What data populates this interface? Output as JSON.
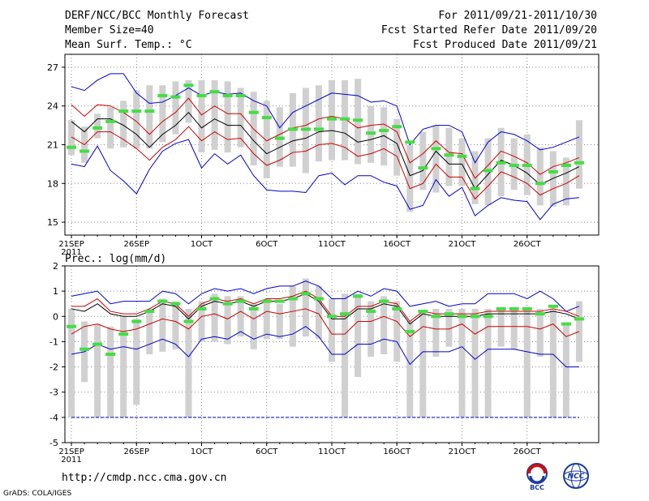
{
  "header": {
    "title": "DERF/NCC/BCC Monthly Forecast",
    "member_size": "Member Size=40",
    "variable": "Mean Surf. Temp.: °C",
    "period": "For 2011/09/21-2011/10/30",
    "refer_date": "Fcst Started Refer Date 2011/09/20",
    "produced_date": "Fcst Produced Date 2011/09/21"
  },
  "footer": {
    "url": "http://cmdp.ncc.cma.gov.cn",
    "credit": "GrADS: COLA/IGES",
    "logo_left_text": "BCC",
    "logo_right_text": "NCC"
  },
  "colors": {
    "ensemble_mean": "#000000",
    "inner_range": "#cc0000",
    "outer_range": "#0000cc",
    "observed_marker": "#44dd44",
    "spread_box": "#d0d0d0",
    "grid": "#888888"
  },
  "chart_data": [
    {
      "type": "line",
      "title": "Mean Surf. Temp.: °C",
      "ylabel": "°C",
      "ylim": [
        14,
        28
      ],
      "yticks": [
        15,
        18,
        21,
        24,
        27
      ],
      "xlim": [
        -0.5,
        40.5
      ],
      "x_day_index": [
        0,
        1,
        2,
        3,
        4,
        5,
        6,
        7,
        8,
        9,
        10,
        11,
        12,
        13,
        14,
        15,
        16,
        17,
        18,
        19,
        20,
        21,
        22,
        23,
        24,
        25,
        26,
        27,
        28,
        29,
        30,
        31,
        32,
        33,
        34,
        35,
        36,
        37,
        38,
        39
      ],
      "xtick_index": [
        0,
        5,
        10,
        15,
        20,
        25,
        30,
        35
      ],
      "xtick_labels": [
        "21SEP",
        "26SEP",
        "1OCT",
        "6OCT",
        "11OCT",
        "16OCT",
        "21OCT",
        "26OCT"
      ],
      "xtick_sublabel": "2011",
      "series": [
        {
          "name": "ensemble_mean",
          "values": [
            22.8,
            22.0,
            23.0,
            23.0,
            22.5,
            21.8,
            20.8,
            21.8,
            22.5,
            23.5,
            22.3,
            23.0,
            22.5,
            22.5,
            21.3,
            20.3,
            20.8,
            21.3,
            21.5,
            22.0,
            22.1,
            21.9,
            21.2,
            21.4,
            21.7,
            21.1,
            18.6,
            19.0,
            20.5,
            19.5,
            19.5,
            17.6,
            18.7,
            19.8,
            19.4,
            18.8,
            17.9,
            18.4,
            18.8,
            19.3
          ]
        },
        {
          "name": "inner_upper",
          "values": [
            24.1,
            23.2,
            24.1,
            24.0,
            23.5,
            22.8,
            21.8,
            22.8,
            23.5,
            24.6,
            23.3,
            24.0,
            23.4,
            23.4,
            22.2,
            21.3,
            21.8,
            22.3,
            22.5,
            23.0,
            23.2,
            23.0,
            22.3,
            22.5,
            22.6,
            22.0,
            19.6,
            20.3,
            21.3,
            20.4,
            20.3,
            18.4,
            19.4,
            20.5,
            20.1,
            19.6,
            18.7,
            19.3,
            19.6,
            20.0
          ]
        },
        {
          "name": "inner_lower",
          "values": [
            21.6,
            21.0,
            22.0,
            22.0,
            21.4,
            20.7,
            19.8,
            20.8,
            21.4,
            22.4,
            21.3,
            22.0,
            21.4,
            21.5,
            20.3,
            19.4,
            19.8,
            20.4,
            20.5,
            21.0,
            21.1,
            20.8,
            20.1,
            20.3,
            20.7,
            20.1,
            17.6,
            18.0,
            19.5,
            18.5,
            18.5,
            16.8,
            17.8,
            18.9,
            18.5,
            18.0,
            17.1,
            17.6,
            18.0,
            18.6
          ]
        },
        {
          "name": "outer_upper",
          "values": [
            25.5,
            25.2,
            26.0,
            26.5,
            26.5,
            25.0,
            24.2,
            24.3,
            24.8,
            25.4,
            24.8,
            25.1,
            24.9,
            25.0,
            24.4,
            24.0,
            22.3,
            23.5,
            24.0,
            24.5,
            25.0,
            24.9,
            24.8,
            24.3,
            24.4,
            24.0,
            21.0,
            22.2,
            22.5,
            22.5,
            22.0,
            19.6,
            21.2,
            22.0,
            21.8,
            21.3,
            20.6,
            20.8,
            21.2,
            21.6
          ]
        },
        {
          "name": "outer_lower",
          "values": [
            19.5,
            19.3,
            20.9,
            19.0,
            18.2,
            17.2,
            19.1,
            20.5,
            21.1,
            21.4,
            19.2,
            20.3,
            19.5,
            20.2,
            18.6,
            17.5,
            17.4,
            17.4,
            17.3,
            18.6,
            18.8,
            17.9,
            18.6,
            18.6,
            18.1,
            17.8,
            16.0,
            16.3,
            18.3,
            17.0,
            17.7,
            15.5,
            16.3,
            16.9,
            16.7,
            16.6,
            15.2,
            16.4,
            16.8,
            16.9
          ]
        },
        {
          "name": "spread_max",
          "values": [
            22.9,
            22.4,
            23.4,
            23.9,
            24.4,
            25.2,
            25.6,
            25.6,
            25.9,
            26.0,
            26.0,
            26.0,
            25.9,
            25.4,
            25.1,
            24.4,
            23.9,
            25.0,
            25.4,
            25.6,
            26.0,
            26.0,
            26.1,
            24.0,
            23.9,
            23.0,
            21.0,
            22.0,
            22.5,
            22.3,
            21.5,
            20.5,
            21.5,
            22.3,
            21.5,
            21.8,
            20.8,
            20.5,
            20.0,
            22.9
          ]
        },
        {
          "name": "spread_min",
          "values": [
            20.2,
            19.6,
            21.5,
            20.7,
            20.8,
            20.7,
            20.7,
            21.2,
            21.8,
            22.7,
            20.4,
            20.6,
            20.4,
            20.8,
            19.4,
            18.4,
            19.3,
            19.3,
            18.8,
            19.7,
            19.8,
            19.8,
            19.5,
            19.6,
            19.4,
            18.6,
            15.8,
            17.5,
            17.3,
            17.8,
            17.8,
            16.4,
            16.3,
            17.0,
            17.5,
            17.1,
            16.3,
            16.2,
            16.3,
            17.6
          ]
        },
        {
          "name": "observed",
          "values": [
            20.8,
            20.5,
            22.3,
            22.8,
            23.6,
            23.6,
            23.6,
            24.8,
            24.7,
            25.6,
            24.8,
            25.1,
            24.8,
            24.8,
            23.5,
            23.1,
            21.5,
            22.2,
            22.2,
            22.2,
            23.0,
            23.0,
            22.9,
            21.9,
            22.1,
            22.4,
            21.2,
            19.2,
            20.7,
            20.2,
            20.1,
            17.6,
            19.0,
            19.6,
            19.4,
            19.4,
            18.0,
            18.9,
            19.4,
            19.6
          ]
        }
      ]
    },
    {
      "type": "line",
      "title": "Prec.: log(mm/d)",
      "ylabel": "log(mm/d)",
      "ylim": [
        -5,
        2
      ],
      "yticks": [
        -5,
        -4,
        -3,
        -2,
        -1,
        0,
        1,
        2
      ],
      "xlim": [
        -0.5,
        40.5
      ],
      "x_day_index": [
        0,
        1,
        2,
        3,
        4,
        5,
        6,
        7,
        8,
        9,
        10,
        11,
        12,
        13,
        14,
        15,
        16,
        17,
        18,
        19,
        20,
        21,
        22,
        23,
        24,
        25,
        26,
        27,
        28,
        29,
        30,
        31,
        32,
        33,
        34,
        35,
        36,
        37,
        38,
        39
      ],
      "xtick_index": [
        0,
        5,
        10,
        15,
        20,
        25,
        30,
        35
      ],
      "xtick_labels": [
        "21SEP",
        "26SEP",
        "1OCT",
        "6OCT",
        "11OCT",
        "16OCT",
        "21OCT",
        "26OCT"
      ],
      "xtick_sublabel": "2011",
      "reference_line": -4,
      "series": [
        {
          "name": "ensemble_mean",
          "values": [
            0.3,
            0.2,
            0.5,
            0.1,
            0.0,
            0.0,
            0.2,
            0.5,
            0.4,
            -0.1,
            0.4,
            0.6,
            0.5,
            0.6,
            0.4,
            0.6,
            0.6,
            0.7,
            0.9,
            0.6,
            -0.1,
            -0.1,
            0.3,
            0.3,
            0.5,
            0.4,
            -0.3,
            0.1,
            0.0,
            0.0,
            0.0,
            0.0,
            0.1,
            0.1,
            0.1,
            0.1,
            0.1,
            0.2,
            0.1,
            -0.1
          ]
        },
        {
          "name": "inner_upper",
          "values": [
            0.4,
            0.4,
            0.7,
            0.2,
            0.1,
            0.1,
            0.3,
            0.6,
            0.5,
            0.0,
            0.5,
            0.7,
            0.6,
            0.7,
            0.5,
            0.7,
            0.7,
            0.8,
            1.0,
            0.7,
            0.0,
            0.0,
            0.4,
            0.4,
            0.6,
            0.5,
            -0.2,
            0.2,
            0.1,
            0.1,
            0.1,
            0.1,
            0.2,
            0.2,
            0.2,
            0.2,
            0.2,
            0.3,
            0.2,
            0.0
          ]
        },
        {
          "name": "inner_lower",
          "values": [
            -0.7,
            -0.4,
            -0.3,
            -0.5,
            -0.6,
            -0.5,
            -0.3,
            -0.1,
            -0.2,
            -0.5,
            0.0,
            0.1,
            -0.1,
            0.2,
            -0.1,
            0.2,
            0.1,
            0.2,
            0.3,
            0.1,
            -0.7,
            -0.7,
            -0.2,
            -0.2,
            0.0,
            -0.2,
            -0.8,
            -0.4,
            -0.5,
            -0.5,
            -0.3,
            -0.7,
            -0.4,
            -0.4,
            -0.4,
            -0.4,
            -0.5,
            -0.3,
            -0.8,
            -0.6
          ]
        },
        {
          "name": "outer_upper",
          "values": [
            0.8,
            0.9,
            1.0,
            0.5,
            0.6,
            0.6,
            0.6,
            1.0,
            0.9,
            0.5,
            0.9,
            1.1,
            1.0,
            1.1,
            0.9,
            1.1,
            1.2,
            1.2,
            1.4,
            1.2,
            0.7,
            0.7,
            1.0,
            0.8,
            1.1,
            1.0,
            0.4,
            0.5,
            0.6,
            0.4,
            0.5,
            0.5,
            0.9,
            0.9,
            0.9,
            0.7,
            1.0,
            0.7,
            0.2,
            0.4
          ]
        },
        {
          "name": "outer_lower",
          "values": [
            -1.5,
            -1.4,
            -1.1,
            -1.3,
            -1.2,
            -1.3,
            -1.1,
            -0.9,
            -1.1,
            -1.6,
            -0.9,
            -0.8,
            -0.9,
            -0.6,
            -0.9,
            -0.7,
            -0.8,
            -0.7,
            -0.4,
            -0.8,
            -1.5,
            -1.5,
            -1.1,
            -1.1,
            -0.9,
            -1.0,
            -1.9,
            -1.4,
            -1.4,
            -1.4,
            -1.2,
            -1.7,
            -1.3,
            -1.3,
            -1.3,
            -1.4,
            -1.5,
            -1.5,
            -2.0,
            -2.0
          ]
        },
        {
          "name": "spread_max",
          "values": [
            0.3,
            -0.2,
            -0.3,
            -0.4,
            0.0,
            -0.1,
            0.3,
            0.7,
            0.6,
            0.3,
            0.6,
            0.9,
            0.8,
            0.8,
            0.5,
            0.7,
            0.5,
            1.2,
            1.5,
            1.2,
            0.7,
            0.9,
            0.9,
            0.6,
            0.8,
            0.6,
            -0.2,
            0.2,
            0.3,
            0.3,
            0.3,
            0.3,
            0.3,
            0.3,
            0.3,
            0.3,
            0.3,
            0.3,
            -0.3,
            0.6
          ]
        },
        {
          "name": "spread_min",
          "values": [
            -4.0,
            -2.6,
            -4.0,
            -4.0,
            -4.0,
            -3.5,
            -1.5,
            -1.4,
            -1.3,
            -4.0,
            -1.0,
            -1.0,
            -1.1,
            -0.8,
            -1.3,
            -0.9,
            -0.9,
            -1.2,
            -0.8,
            -0.9,
            -1.8,
            -4.0,
            -2.4,
            -1.6,
            -1.5,
            -1.8,
            -4.0,
            -4.0,
            -1.6,
            -1.2,
            -4.0,
            -4.0,
            -4.0,
            -1.2,
            -1.3,
            -4.0,
            -1.6,
            -4.0,
            -4.0,
            -1.8
          ]
        },
        {
          "name": "observed",
          "values": [
            -0.4,
            -1.3,
            -1.1,
            -1.5,
            -0.7,
            -0.2,
            0.2,
            0.6,
            0.5,
            -0.2,
            0.3,
            0.7,
            0.5,
            0.6,
            0.3,
            0.6,
            0.6,
            0.7,
            0.9,
            0.7,
            0.0,
            0.1,
            0.8,
            0.2,
            0.6,
            0.3,
            -0.6,
            0.2,
            0.0,
            0.1,
            0.0,
            0.0,
            0.0,
            0.3,
            0.3,
            0.3,
            0.1,
            0.4,
            -0.3,
            -0.1
          ]
        }
      ]
    }
  ]
}
